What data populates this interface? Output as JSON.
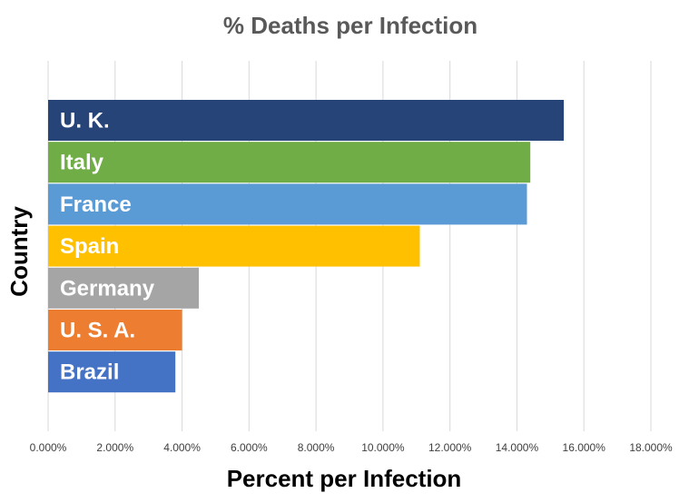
{
  "chart_data": {
    "type": "bar",
    "orientation": "horizontal",
    "title": "% Deaths per Infection",
    "xlabel": "Percent per Infection",
    "ylabel": "Country",
    "xlim": [
      0,
      18
    ],
    "x_ticks": [
      "0.000%",
      "2.000%",
      "4.000%",
      "6.000%",
      "8.000%",
      "10.000%",
      "12.000%",
      "14.000%",
      "16.000%",
      "18.000%"
    ],
    "grid": "vertical",
    "legend": "none",
    "categories": [
      "U. K.",
      "Italy",
      "France",
      "Spain",
      "Germany",
      "U. S. A.",
      "Brazil"
    ],
    "values": [
      15.4,
      14.4,
      14.3,
      11.1,
      4.5,
      4.0,
      3.8
    ],
    "colors": [
      "#264478",
      "#70AD47",
      "#5B9BD5",
      "#FFC000",
      "#A5A5A5",
      "#ED7D31",
      "#4472C4"
    ]
  }
}
